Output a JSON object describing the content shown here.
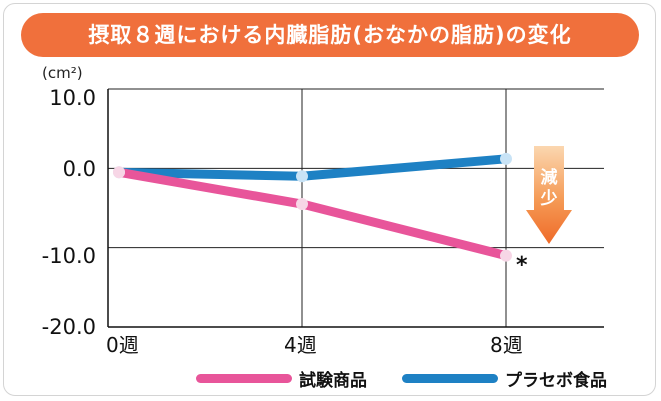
{
  "chart_data": {
    "type": "line",
    "title": "摂取８週における内臓脂肪(おなかの脂肪)の変化",
    "unit_label": "(cm²)",
    "categories": [
      "0週",
      "4週",
      "8週"
    ],
    "series": [
      {
        "name": "試験商品",
        "values": [
          -0.5,
          -4.5,
          -11.0
        ],
        "color": "#e8559a"
      },
      {
        "name": "プラセボ食品",
        "values": [
          -0.5,
          -1.0,
          1.2
        ],
        "color": "#1e81c4"
      }
    ],
    "ylim": [
      -20,
      10
    ],
    "yticks": [
      "10.0",
      "0.0",
      "-10.0",
      "-20.0"
    ],
    "grid": true,
    "legend_position": "bottom-right",
    "annotation": {
      "text_lines": [
        "減",
        "少"
      ],
      "significance_mark": "*",
      "arrow_color": "#f08838"
    }
  }
}
